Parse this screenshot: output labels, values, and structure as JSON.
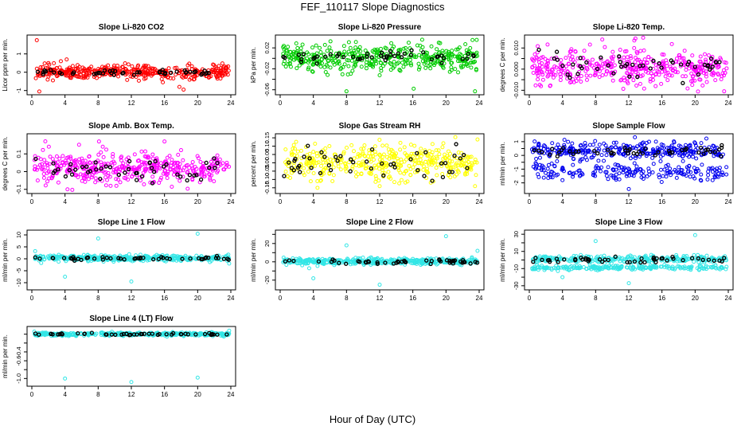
{
  "figure": {
    "title": "FEF_110117  Slope Diagnostics",
    "xlabel": "Hour of Day (UTC)"
  },
  "chart_data": [
    {
      "type": "scatter",
      "title": "Slope Li-820 CO2",
      "ylabel": "Licor ppm per min.",
      "xlim": [
        0,
        24
      ],
      "xticks": [
        0,
        4,
        8,
        12,
        16,
        20,
        24
      ],
      "ylim": [
        -1.1,
        1.9
      ],
      "yticks": [
        -1,
        0,
        1
      ],
      "series_color": "#ff0000",
      "overlay_color": "#000000",
      "main": {
        "mean": 0.0,
        "spread": 0.18,
        "n": 420
      },
      "overlay": {
        "mean": 0.0,
        "spread": 0.08,
        "n": 48
      },
      "outliers": [
        [
          0.6,
          1.75
        ],
        [
          0.9,
          -1.05
        ],
        [
          4.2,
          0.7
        ],
        [
          3.5,
          0.6
        ],
        [
          2.0,
          0.5
        ],
        [
          17.8,
          -0.8
        ],
        [
          18.3,
          -0.95
        ],
        [
          15.8,
          -0.55
        ]
      ]
    },
    {
      "type": "scatter",
      "title": "Slope Li-820 Pressure",
      "ylabel": "kPa per min.",
      "xlim": [
        0,
        24
      ],
      "xticks": [
        0,
        4,
        8,
        12,
        16,
        20,
        24
      ],
      "ylim": [
        -0.065,
        0.04
      ],
      "yticks": [
        -0.06,
        -0.04,
        -0.02,
        0.0,
        0.02
      ],
      "ytick_labels": [
        "-0.06",
        "",
        "-0.02",
        "",
        "0.02"
      ],
      "series_color": "#00cc00",
      "overlay_color": "#000000",
      "main": {
        "mean": 0.0,
        "spread": 0.012,
        "n": 420
      },
      "overlay": {
        "mean": 0.003,
        "spread": 0.006,
        "n": 48
      },
      "outliers": [
        [
          8.0,
          -0.063
        ],
        [
          16.1,
          -0.058
        ],
        [
          23.5,
          -0.063
        ],
        [
          23.2,
          0.035
        ],
        [
          15.5,
          0.03
        ]
      ]
    },
    {
      "type": "scatter",
      "title": "Slope Li-820 Temp.",
      "ylabel": "degrees C per min.",
      "xlim": [
        0,
        24
      ],
      "xticks": [
        0,
        4,
        8,
        12,
        16,
        20,
        24
      ],
      "ylim": [
        -0.011,
        0.015
      ],
      "yticks": [
        -0.01,
        -0.005,
        0.0,
        0.005,
        0.01
      ],
      "ytick_labels": [
        "-0.010",
        "",
        "0.000",
        "",
        "0.010"
      ],
      "series_color": "#ff00ff",
      "overlay_color": "#000000",
      "main": {
        "mean": 0.001,
        "spread": 0.004,
        "n": 420
      },
      "overlay": {
        "mean": 0.002,
        "spread": 0.003,
        "n": 48
      },
      "outliers": [
        [
          23.5,
          -0.0105
        ],
        [
          2.5,
          -0.008
        ],
        [
          15.9,
          -0.007
        ],
        [
          8.8,
          0.014
        ],
        [
          12.8,
          0.0145
        ]
      ]
    },
    {
      "type": "scatter",
      "title": "Slope Amb. Box Temp.",
      "ylabel": "degrees C per min.",
      "xlim": [
        0,
        24
      ],
      "xticks": [
        0,
        4,
        8,
        12,
        16,
        20,
        24
      ],
      "ylim": [
        -0.11,
        0.2
      ],
      "yticks": [
        -0.1,
        0.0,
        0.1
      ],
      "series_color": "#ff00ff",
      "overlay_color": "#000000",
      "main": {
        "mean": 0.02,
        "spread": 0.045,
        "n": 420
      },
      "overlay": {
        "mean": 0.0,
        "spread": 0.035,
        "n": 48
      },
      "outliers": [
        [
          4.3,
          -0.1
        ],
        [
          8.1,
          0.17
        ],
        [
          9.5,
          -0.08
        ],
        [
          10.2,
          -0.08
        ],
        [
          16.0,
          0.17
        ]
      ]
    },
    {
      "type": "scatter",
      "title": "Slope Gas Stream RH",
      "ylabel": "percent per min.",
      "xlim": [
        0,
        24
      ],
      "xticks": [
        0,
        4,
        8,
        12,
        16,
        20,
        24
      ],
      "ylim": [
        -0.17,
        0.16
      ],
      "yticks": [
        -0.15,
        -0.1,
        -0.05,
        0.0,
        0.05,
        0.1,
        0.15
      ],
      "ytick_labels": [
        "-0.15",
        "-0.10",
        "-0.05",
        "0.00",
        "0.05",
        "0.10",
        "0.15"
      ],
      "series_color": "#ffff00",
      "overlay_color": "#000000",
      "main": {
        "mean": 0.0,
        "spread": 0.05,
        "n": 420
      },
      "overlay": {
        "mean": -0.01,
        "spread": 0.05,
        "n": 48
      },
      "outliers": [
        [
          23.8,
          0.14
        ],
        [
          23.5,
          -0.14
        ],
        [
          4.5,
          -0.15
        ],
        [
          12.0,
          -0.14
        ],
        [
          14.5,
          0.12
        ]
      ]
    },
    {
      "type": "scatter",
      "title": "Slope Sample Flow",
      "ylabel": "ml/min per min.",
      "xlim": [
        0,
        24
      ],
      "xticks": [
        0,
        4,
        8,
        12,
        16,
        20,
        24
      ],
      "ylim": [
        -2.6,
        1.4
      ],
      "yticks": [
        -2,
        -1.5,
        -1,
        -0.5,
        0,
        0.5,
        1
      ],
      "ytick_labels": [
        "-2",
        "",
        "-1",
        "",
        "0",
        "",
        "1"
      ],
      "series_color": "#0000ee",
      "overlay_color": "#000000",
      "main": {
        "mean": 0.35,
        "spread": 0.3,
        "n": 300
      },
      "main2": {
        "mean": -1.15,
        "spread": 0.3,
        "n": 200
      },
      "overlay": {
        "mean": 0.35,
        "spread": 0.2,
        "n": 48
      },
      "outliers": [
        [
          12.0,
          -2.45
        ],
        [
          4.0,
          -1.8
        ],
        [
          21.5,
          -1.75
        ]
      ]
    },
    {
      "type": "scatter",
      "title": "Slope Line 1 Flow",
      "ylabel": "ml/min per min.",
      "xlim": [
        0,
        24
      ],
      "xticks": [
        0,
        4,
        8,
        12,
        16,
        20,
        24
      ],
      "ylim": [
        -12,
        11
      ],
      "yticks": [
        -10,
        -5,
        0,
        5,
        10
      ],
      "series_color": "#33e6e6",
      "overlay_color": "#000000",
      "main": {
        "mean": 0.3,
        "spread": 0.6,
        "n": 420
      },
      "overlay": {
        "mean": 0.1,
        "spread": 0.3,
        "n": 48
      },
      "outliers": [
        [
          4.0,
          -7.5
        ],
        [
          8.0,
          8.5
        ],
        [
          12.0,
          -9.5
        ],
        [
          20.0,
          10.5
        ],
        [
          0.4,
          3.2
        ],
        [
          23.8,
          -2.0
        ]
      ]
    },
    {
      "type": "scatter",
      "title": "Slope Line 2 Flow",
      "ylabel": "ml/min per min.",
      "xlim": [
        0,
        24
      ],
      "xticks": [
        0,
        4,
        8,
        12,
        16,
        20,
        24
      ],
      "ylim": [
        -28,
        32
      ],
      "yticks": [
        -20,
        -10,
        0,
        10,
        20,
        30
      ],
      "ytick_labels": [
        "-20",
        "",
        "0",
        "",
        "20",
        ""
      ],
      "series_color": "#33e6e6",
      "overlay_color": "#000000",
      "main": {
        "mean": 0.5,
        "spread": 1.6,
        "n": 420
      },
      "overlay": {
        "mean": 0.0,
        "spread": 1.5,
        "n": 48
      },
      "outliers": [
        [
          4.0,
          -18
        ],
        [
          8.0,
          18
        ],
        [
          12.0,
          -25
        ],
        [
          20.0,
          28
        ],
        [
          23.8,
          12
        ],
        [
          3.5,
          -7
        ]
      ]
    },
    {
      "type": "scatter",
      "title": "Slope Line 3 Flow",
      "ylabel": "ml/min per min.",
      "xlim": [
        0,
        24
      ],
      "xticks": [
        0,
        4,
        8,
        12,
        16,
        20,
        24
      ],
      "ylim": [
        -32,
        32
      ],
      "yticks": [
        -30,
        -20,
        -10,
        0,
        10,
        20,
        30
      ],
      "ytick_labels": [
        "-30",
        "",
        "-10",
        "",
        "10",
        "",
        "30"
      ],
      "series_color": "#33e6e6",
      "overlay_color": "#000000",
      "main": {
        "mean": 1.0,
        "spread": 2.0,
        "n": 280
      },
      "main2": {
        "mean": -9.0,
        "spread": 1.2,
        "n": 220
      },
      "overlay": {
        "mean": 0.5,
        "spread": 1.8,
        "n": 48
      },
      "outliers": [
        [
          4.0,
          -20
        ],
        [
          8.0,
          22
        ],
        [
          12.0,
          -27
        ],
        [
          20.0,
          29
        ]
      ]
    },
    {
      "type": "scatter",
      "title": "Slope Line 4 (LT) Flow",
      "ylabel": "ml/min per min.",
      "xlim": [
        0,
        24
      ],
      "xticks": [
        0,
        4,
        8,
        12,
        16,
        20,
        24
      ],
      "ylim": [
        -1.12,
        0.12
      ],
      "yticks": [
        -1.0,
        -0.8,
        -0.6,
        -0.4,
        -0.2,
        0.0
      ],
      "ytick_labels": [
        "-1.0",
        "",
        "-0.6",
        "-0.4",
        "",
        ""
      ],
      "series_color": "#33e6e6",
      "overlay_color": "#000000",
      "main": {
        "mean": 0.0,
        "spread": 0.018,
        "n": 420
      },
      "overlay": {
        "mean": 0.0,
        "spread": 0.012,
        "n": 48
      },
      "outliers": [
        [
          4.0,
          -1.0
        ],
        [
          12.0,
          -1.08
        ],
        [
          20.0,
          -0.98
        ],
        [
          23.8,
          0.08
        ],
        [
          0.3,
          0.06
        ]
      ]
    }
  ]
}
